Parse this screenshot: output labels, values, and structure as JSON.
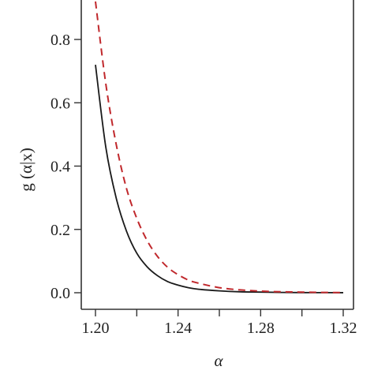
{
  "chart_data": {
    "type": "line",
    "title": "",
    "xlabel": "α",
    "ylabel": "g (α|x)",
    "xlim": [
      1.2,
      1.32
    ],
    "ylim": [
      0.0,
      0.8
    ],
    "xticks": [
      1.2,
      1.22,
      1.24,
      1.26,
      1.28,
      1.3,
      1.32
    ],
    "xtick_labels": [
      "1.20",
      "",
      "1.24",
      "",
      "1.28",
      "",
      "1.32"
    ],
    "yticks": [
      0.0,
      0.2,
      0.4,
      0.6,
      0.8
    ],
    "ytick_labels": [
      "0.0",
      "0.2",
      "0.4",
      "0.6",
      "0.8"
    ],
    "grid": false,
    "legend": "none",
    "series": [
      {
        "style": "solid",
        "color": "#1a1a1a",
        "x": [
          1.2,
          1.205,
          1.21,
          1.215,
          1.22,
          1.225,
          1.23,
          1.235,
          1.24,
          1.245,
          1.25,
          1.26,
          1.27,
          1.28,
          1.29,
          1.3,
          1.31,
          1.32
        ],
        "y": [
          0.72,
          0.46,
          0.3,
          0.195,
          0.125,
          0.082,
          0.054,
          0.035,
          0.024,
          0.016,
          0.011,
          0.006,
          0.003,
          0.002,
          0.001,
          0.0005,
          0.0003,
          0.0002
        ]
      },
      {
        "style": "dashed",
        "color": "#c0282c",
        "x": [
          1.2,
          1.205,
          1.21,
          1.215,
          1.22,
          1.225,
          1.23,
          1.235,
          1.24,
          1.245,
          1.25,
          1.26,
          1.27,
          1.28,
          1.29,
          1.3,
          1.31,
          1.32
        ],
        "y": [
          0.92,
          0.66,
          0.47,
          0.33,
          0.235,
          0.165,
          0.115,
          0.08,
          0.057,
          0.04,
          0.03,
          0.016,
          0.009,
          0.005,
          0.003,
          0.002,
          0.001,
          0.0005
        ]
      }
    ]
  }
}
